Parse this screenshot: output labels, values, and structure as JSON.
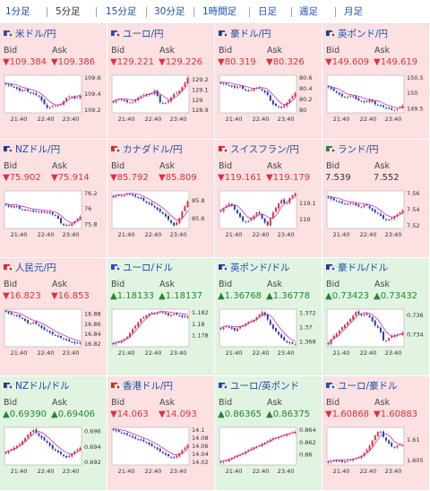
{
  "tabs": [
    "1分足",
    "5分足",
    "15分足",
    "30分足",
    "1時間足",
    "日足",
    "週足",
    "月足"
  ],
  "active_tab": "5分足",
  "labels": {
    "bid": "Bid",
    "ask": "Ask"
  },
  "colors": {
    "down_bg": "#fde0e2",
    "up_bg": "#e1f4e1",
    "down_text": "#e0303a",
    "up_text": "#1f8a30",
    "link": "#1a4fa8",
    "candle_up": "#e0303a",
    "candle_down": "#2a3aa8",
    "ma": "#c030c0"
  },
  "pairs": [
    {
      "name": "米ドル/円",
      "flag": "us-jp-flag-icon",
      "dir": "down",
      "bid": "▼109.384",
      "ask": "▼109.386",
      "ticks": [
        "109.6",
        "109.4",
        "109.2"
      ],
      "times": [
        "21:40",
        "22:40",
        "23:40"
      ],
      "series": [
        109.52,
        109.5,
        109.48,
        109.44,
        109.46,
        109.42,
        109.4,
        109.38,
        109.3,
        109.22,
        109.26,
        109.25,
        109.28,
        109.35,
        109.38,
        109.34,
        109.38
      ]
    },
    {
      "name": "ユーロ/円",
      "flag": "eu-jp-flag-icon",
      "dir": "down",
      "bid": "▼129.221",
      "ask": "▼129.226",
      "ticks": [
        "129.2",
        "129.1",
        "129",
        "128.9"
      ],
      "times": [
        "21:40",
        "22:40",
        "23:40"
      ],
      "series": [
        128.98,
        129.01,
        129.0,
        128.98,
        128.97,
        129.02,
        129.04,
        129.06,
        129.05,
        129.1,
        128.98,
        128.96,
        129.0,
        129.06,
        129.08,
        129.14,
        129.22
      ]
    },
    {
      "name": "豪ドル/円",
      "flag": "au-jp-flag-icon",
      "dir": "down",
      "bid": "▼80.319",
      "ask": "▼80.326",
      "ticks": [
        "80.6",
        "80.4",
        "80.2",
        "80"
      ],
      "times": [
        "21:40",
        "22:40",
        "23:40"
      ],
      "series": [
        80.5,
        80.48,
        80.45,
        80.42,
        80.45,
        80.38,
        80.35,
        80.4,
        80.42,
        80.36,
        80.3,
        80.12,
        80.08,
        80.04,
        80.12,
        80.22,
        80.32
      ]
    },
    {
      "name": "英ポンド/円",
      "flag": "gb-jp-flag-icon",
      "dir": "down",
      "bid": "▼149.609",
      "ask": "▼149.619",
      "ticks": [
        "150.5",
        "150",
        "149.5"
      ],
      "times": [
        "21:40",
        "22:40",
        "23:40"
      ],
      "series": [
        150.2,
        150.1,
        150.0,
        149.9,
        149.85,
        149.95,
        149.8,
        149.75,
        149.7,
        149.8,
        149.65,
        149.6,
        149.55,
        149.5,
        149.45,
        149.5,
        149.6
      ]
    },
    {
      "name": "NZドル/円",
      "flag": "nz-jp-flag-icon",
      "dir": "down",
      "bid": "▼75.902",
      "ask": "▼75.914",
      "ticks": [
        "76.2",
        "76",
        "75.8"
      ],
      "times": [
        "21:40",
        "22:40",
        "23:40"
      ],
      "series": [
        76.05,
        76.02,
        76.04,
        76.0,
        75.98,
        75.99,
        75.96,
        75.97,
        75.95,
        75.96,
        75.93,
        75.9,
        75.8,
        75.78,
        75.8,
        75.85,
        75.9
      ]
    },
    {
      "name": "カナダドル/円",
      "flag": "ca-jp-flag-icon",
      "dir": "down",
      "bid": "▼85.792",
      "ask": "▼85.809",
      "ticks": [
        "85.8",
        "85.6"
      ],
      "times": [
        "21:40",
        "22:40",
        "23:40"
      ],
      "series": [
        85.84,
        85.86,
        85.85,
        85.88,
        85.86,
        85.84,
        85.82,
        85.78,
        85.76,
        85.72,
        85.68,
        85.64,
        85.58,
        85.52,
        85.58,
        85.7,
        85.79
      ]
    },
    {
      "name": "スイスフラン/円",
      "flag": "ch-jp-flag-icon",
      "dir": "down",
      "bid": "▼119.161",
      "ask": "▼119.179",
      "ticks": [
        "119.1",
        "119"
      ],
      "times": [
        "21:40",
        "22:40",
        "23:40"
      ],
      "series": [
        119.05,
        119.08,
        119.1,
        119.06,
        119.02,
        118.98,
        118.99,
        119.02,
        119.05,
        119.0,
        118.96,
        119.03,
        119.08,
        119.12,
        119.09,
        119.14,
        119.16
      ]
    },
    {
      "name": "ランド/円",
      "flag": "za-jp-flag-icon",
      "dir": "neutral",
      "bid": "7.539",
      "ask": "7.552",
      "ticks": [
        "7.56",
        "7.54",
        "7.52"
      ],
      "times": [
        "21:40",
        "22:40",
        "23:40"
      ],
      "series": [
        7.555,
        7.552,
        7.55,
        7.548,
        7.546,
        7.549,
        7.545,
        7.543,
        7.547,
        7.541,
        7.537,
        7.534,
        7.528,
        7.527,
        7.531,
        7.535,
        7.539
      ]
    },
    {
      "name": "人民元/円",
      "flag": "cn-jp-flag-icon",
      "dir": "down",
      "bid": "▼16.823",
      "ask": "▼16.853",
      "ticks": [
        "16.88",
        "16.86",
        "16.84",
        "16.82"
      ],
      "times": [
        "21:40",
        "22:40",
        "23:40"
      ],
      "series": [
        16.885,
        16.88,
        16.878,
        16.874,
        16.868,
        16.86,
        16.864,
        16.858,
        16.85,
        16.846,
        16.84,
        16.836,
        16.832,
        16.828,
        16.825,
        16.821,
        16.823
      ]
    },
    {
      "name": "ユーロ/ドル",
      "flag": "eu-us-flag-icon",
      "dir": "up",
      "bid": "▲1.18133",
      "ask": "▲1.18137",
      "ticks": [
        "1.182",
        "1.18",
        "1.178"
      ],
      "times": [
        "21:40",
        "22:40",
        "23:40"
      ],
      "series": [
        1.1765,
        1.1768,
        1.1772,
        1.1778,
        1.179,
        1.18,
        1.181,
        1.1815,
        1.182,
        1.1818,
        1.1822,
        1.1819,
        1.1815,
        1.1818,
        1.1816,
        1.1812,
        1.1813
      ]
    },
    {
      "name": "英ポンド/ドル",
      "flag": "gb-us-flag-icon",
      "dir": "up",
      "bid": "▲1.36768",
      "ask": "▲1.36778",
      "ticks": [
        "1.372",
        "1.37",
        "1.368"
      ],
      "times": [
        "21:40",
        "22:40",
        "23:40"
      ],
      "series": [
        1.3698,
        1.3702,
        1.37,
        1.3696,
        1.3701,
        1.3704,
        1.3708,
        1.371,
        1.3716,
        1.3722,
        1.3712,
        1.37,
        1.3694,
        1.3686,
        1.368,
        1.3678,
        1.3677
      ]
    },
    {
      "name": "豪ドル/ドル",
      "flag": "au-us-flag-icon",
      "dir": "up",
      "bid": "▲0.73423",
      "ask": "▲0.73432",
      "ticks": [
        "0.736",
        "0.734"
      ],
      "times": [
        "21:40",
        "22:40",
        "23:40"
      ],
      "series": [
        0.733,
        0.7338,
        0.7342,
        0.7348,
        0.7352,
        0.7358,
        0.7364,
        0.736,
        0.7362,
        0.7358,
        0.735,
        0.7346,
        0.7332,
        0.7336,
        0.734,
        0.7339,
        0.7342
      ]
    },
    {
      "name": "NZドル/ドル",
      "flag": "nz-us-flag-icon",
      "dir": "up",
      "bid": "▲0.69390",
      "ask": "▲0.69406",
      "ticks": [
        "0.696",
        "0.694",
        "0.692"
      ],
      "times": [
        "21:40",
        "22:40",
        "23:40"
      ],
      "series": [
        0.6932,
        0.6936,
        0.694,
        0.6944,
        0.695,
        0.6958,
        0.6962,
        0.6955,
        0.695,
        0.6945,
        0.6938,
        0.6934,
        0.693,
        0.6926,
        0.693,
        0.6935,
        0.6939
      ]
    },
    {
      "name": "香港ドル/円",
      "flag": "hk-jp-flag-icon",
      "dir": "down",
      "bid": "▼14.063",
      "ask": "▼14.093",
      "ticks": [
        "14.1",
        "14.08",
        "14.06",
        "14.04",
        "14.02"
      ],
      "times": [
        "21:40",
        "22:40",
        "23:40"
      ],
      "series": [
        14.1,
        14.096,
        14.092,
        14.088,
        14.082,
        14.078,
        14.074,
        14.07,
        14.062,
        14.056,
        14.048,
        14.04,
        14.035,
        14.03,
        14.04,
        14.052,
        14.063
      ]
    },
    {
      "name": "ユーロ/英ポンド",
      "flag": "eu-gb-flag-icon",
      "dir": "up",
      "bid": "▲0.86365",
      "ask": "▲0.86375",
      "ticks": [
        "0.864",
        "0.862",
        "0.86"
      ],
      "times": [
        "21:40",
        "22:40",
        "23:40"
      ],
      "series": [
        0.8588,
        0.859,
        0.8594,
        0.8598,
        0.86,
        0.8604,
        0.8608,
        0.8612,
        0.8614,
        0.8618,
        0.8622,
        0.8626,
        0.8628,
        0.863,
        0.8633,
        0.8635,
        0.8637
      ]
    },
    {
      "name": "ユーロ/豪ドル",
      "flag": "eu-au-flag-icon",
      "dir": "down",
      "bid": "▼1.60868",
      "ask": "▼1.60883",
      "ticks": [
        "1.61",
        "1.605"
      ],
      "times": [
        "21:40",
        "22:40",
        "23:40"
      ],
      "series": [
        1.6045,
        1.6048,
        1.605,
        1.6046,
        1.6049,
        1.6052,
        1.6055,
        1.606,
        1.6072,
        1.6088,
        1.611,
        1.6125,
        1.6105,
        1.6092,
        1.608,
        1.6088,
        1.6087
      ]
    }
  ]
}
